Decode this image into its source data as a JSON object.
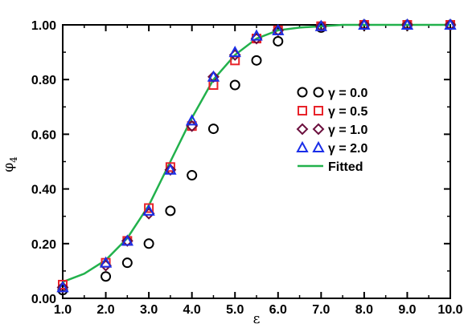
{
  "chart_data": {
    "type": "scatter",
    "title": "",
    "xlabel": "ε",
    "ylabel": "φ",
    "ylabel_subscript": "4",
    "xlim": [
      1.0,
      10.0
    ],
    "ylim": [
      0.0,
      1.0
    ],
    "x_ticks": [
      1.0,
      2.0,
      3.0,
      4.0,
      5.0,
      6.0,
      7.0,
      8.0,
      9.0,
      10.0
    ],
    "x_tick_labels": [
      "1.0",
      "2.0",
      "3.0",
      "4.0",
      "5.0",
      "6.0",
      "7.0",
      "8.0",
      "9.0",
      "10.0"
    ],
    "y_ticks": [
      0.0,
      0.2,
      0.4,
      0.6,
      0.8,
      1.0
    ],
    "y_tick_labels": [
      "0.00",
      "0.20",
      "0.40",
      "0.60",
      "0.80",
      "1.00"
    ],
    "grid": false,
    "legend_position": "right-center",
    "series": [
      {
        "name": "γ = 0.0",
        "marker": "circle",
        "color": "#000000",
        "x": [
          1.0,
          2.0,
          2.5,
          3.0,
          3.5,
          4.0,
          4.5,
          5.0,
          5.5,
          6.0,
          7.0,
          8.0,
          9.0,
          10.0
        ],
        "y": [
          0.03,
          0.08,
          0.13,
          0.2,
          0.32,
          0.45,
          0.62,
          0.78,
          0.87,
          0.94,
          0.99,
          1.0,
          1.0,
          1.0
        ]
      },
      {
        "name": "γ = 0.5",
        "marker": "square",
        "color": "#e8232a",
        "x": [
          1.0,
          2.0,
          2.5,
          3.0,
          3.5,
          4.0,
          4.5,
          5.0,
          5.5,
          6.0,
          7.0,
          8.0,
          9.0,
          10.0
        ],
        "y": [
          0.05,
          0.13,
          0.21,
          0.33,
          0.48,
          0.63,
          0.78,
          0.87,
          0.95,
          0.98,
          0.995,
          1.0,
          1.0,
          1.0
        ]
      },
      {
        "name": "γ = 1.0",
        "marker": "diamond",
        "color": "#6b0f3d",
        "x": [
          1.0,
          2.0,
          2.5,
          3.0,
          3.5,
          4.0,
          4.5,
          5.0,
          5.5,
          6.0,
          7.0,
          8.0,
          9.0,
          10.0
        ],
        "y": [
          0.04,
          0.12,
          0.21,
          0.31,
          0.47,
          0.63,
          0.81,
          0.89,
          0.95,
          0.98,
          0.995,
          1.0,
          1.0,
          1.0
        ]
      },
      {
        "name": "γ = 2.0",
        "marker": "triangle",
        "color": "#1a2ee8",
        "x": [
          1.0,
          2.0,
          2.5,
          3.0,
          3.5,
          4.0,
          4.5,
          5.0,
          5.5,
          6.0,
          7.0,
          8.0,
          9.0,
          10.0
        ],
        "y": [
          0.04,
          0.13,
          0.21,
          0.32,
          0.47,
          0.65,
          0.81,
          0.9,
          0.96,
          0.98,
          0.995,
          1.0,
          1.0,
          1.0
        ]
      },
      {
        "name": "Fitted",
        "marker": "line",
        "color": "#22b14c",
        "x": [
          1.0,
          1.5,
          2.0,
          2.5,
          3.0,
          3.5,
          4.0,
          4.5,
          5.0,
          5.5,
          6.0,
          6.5,
          7.0,
          7.5,
          8.0,
          9.0,
          10.0
        ],
        "y": [
          0.06,
          0.09,
          0.14,
          0.22,
          0.34,
          0.5,
          0.66,
          0.8,
          0.89,
          0.95,
          0.98,
          0.99,
          0.995,
          1.0,
          1.0,
          1.0,
          1.0
        ]
      }
    ]
  }
}
